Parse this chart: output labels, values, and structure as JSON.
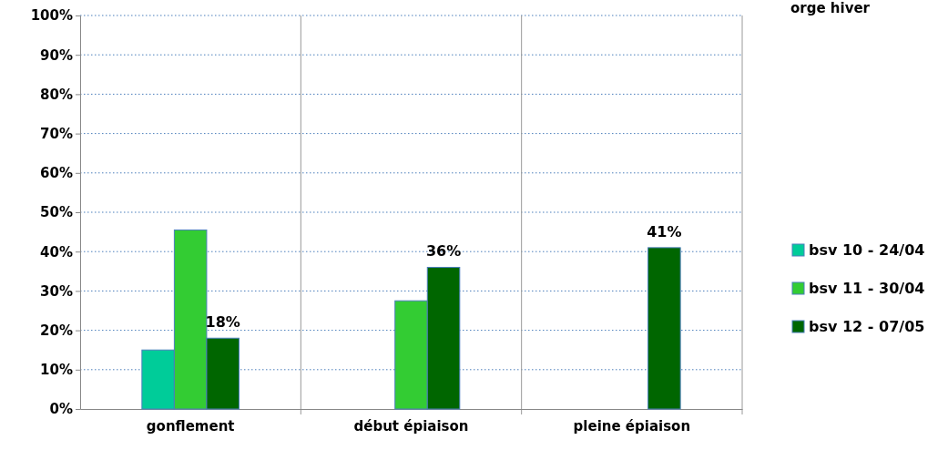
{
  "chart_data": {
    "type": "bar",
    "title": "orge hiver",
    "categories": [
      "gonflement",
      "début épiaison",
      "pleine épiaison"
    ],
    "series": [
      {
        "name": "bsv 10 - 24/04",
        "color": "#00cc99",
        "values": [
          15,
          null,
          null
        ]
      },
      {
        "name": "bsv 11 - 30/04",
        "color": "#33cc33",
        "values": [
          45.5,
          27.5,
          null
        ]
      },
      {
        "name": "bsv 12 - 07/05",
        "color": "#006600",
        "values": [
          18,
          36,
          41
        ],
        "value_labels": [
          "18%",
          "36%",
          "41%"
        ]
      }
    ],
    "ylim": [
      0,
      100
    ],
    "yticks": [
      {
        "value": 0,
        "label": "0%"
      },
      {
        "value": 10,
        "label": "10%"
      },
      {
        "value": 20,
        "label": "20%"
      },
      {
        "value": 30,
        "label": "30%"
      },
      {
        "value": 40,
        "label": "40%"
      },
      {
        "value": 50,
        "label": "50%"
      },
      {
        "value": 60,
        "label": "60%"
      },
      {
        "value": 70,
        "label": "70%"
      },
      {
        "value": 80,
        "label": "80%"
      },
      {
        "value": 90,
        "label": "90%"
      },
      {
        "value": 100,
        "label": "100%"
      }
    ],
    "grid": "y",
    "legend": "right"
  }
}
